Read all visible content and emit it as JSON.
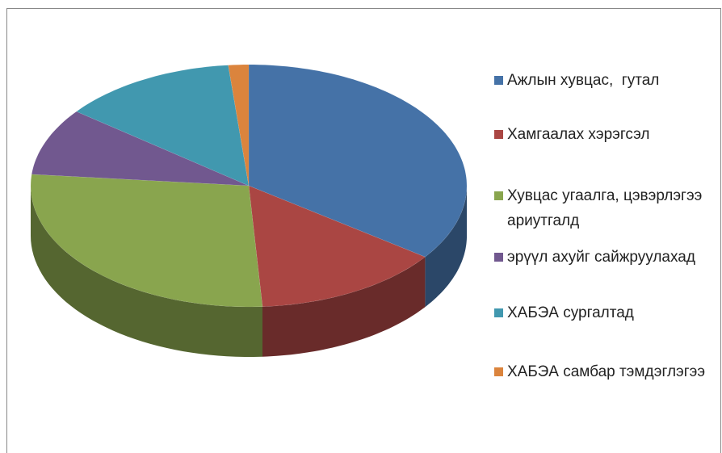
{
  "chart_data": {
    "type": "pie3d",
    "categories": [
      "Ажлын хувцас,  гутал",
      "Хамгаалах хэрэгсэл",
      "Хувцас угаалга, цэвэрлэгээ ариутгалд",
      "эрүүл ахуйг сайжруулахад",
      "ХАБЭА сургалтад",
      "ХАБЭА самбар тэмдэглэгээ"
    ],
    "values": [
      35,
      14,
      27.5,
      9,
      13,
      1.5
    ],
    "colors": [
      "#4572a7",
      "#aa4643",
      "#89a54e",
      "#71588f",
      "#4198af",
      "#db843d"
    ],
    "legend": "right"
  }
}
